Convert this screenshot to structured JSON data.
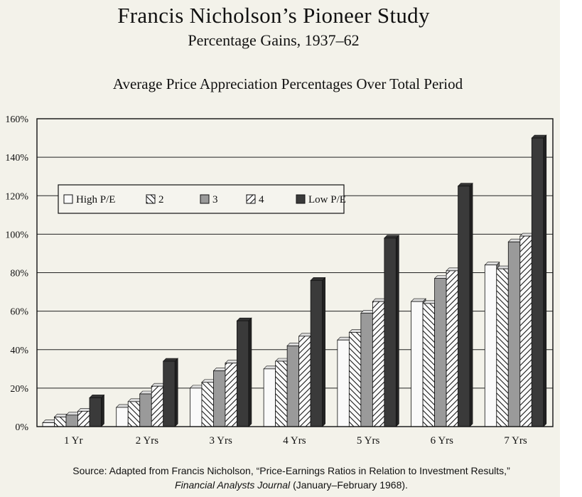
{
  "header": {
    "title": "Francis Nicholson’s Pioneer Study",
    "subtitle": "Percentage Gains, 1937–62"
  },
  "chart_data": {
    "type": "bar",
    "title": "Average Price Appreciation Percentages Over Total Period",
    "xlabel": "",
    "ylabel": "",
    "ylim": [
      0,
      160
    ],
    "yticks": [
      "0%",
      "20%",
      "40%",
      "60%",
      "80%",
      "100%",
      "120%",
      "140%",
      "160%"
    ],
    "grid": true,
    "legend_position": "upper-left",
    "categories": [
      "1 Yr",
      "2 Yrs",
      "3 Yrs",
      "4 Yrs",
      "5 Yrs",
      "6 Yrs",
      "7 Yrs"
    ],
    "series": [
      {
        "name": "High P/E",
        "pattern": "white",
        "values": [
          2,
          10,
          20,
          30,
          45,
          65,
          84
        ]
      },
      {
        "name": "2",
        "pattern": "hatch-back",
        "values": [
          5,
          13,
          23,
          34,
          49,
          64,
          82
        ]
      },
      {
        "name": "3",
        "pattern": "gray",
        "values": [
          6,
          17,
          29,
          42,
          59,
          77,
          96
        ]
      },
      {
        "name": "4",
        "pattern": "hatch-fwd",
        "values": [
          8,
          21,
          33,
          47,
          65,
          81,
          99
        ]
      },
      {
        "name": "Low P/E",
        "pattern": "dark",
        "values": [
          15,
          34,
          55,
          76,
          98,
          125,
          150
        ]
      }
    ]
  },
  "source": {
    "prefix": "Source: Adapted from Francis Nicholson, “Price-Earnings Ratios in Relation to Investment Results,”",
    "journal": "Financial Analysts Journal",
    "suffix": "(January–February 1968)."
  },
  "colors": {
    "background": "#f3f2ea",
    "white_bar": "#fafafa",
    "gray_bar": "#9a9a9a",
    "dark_bar": "#3a3a3a",
    "axis": "#111111"
  }
}
